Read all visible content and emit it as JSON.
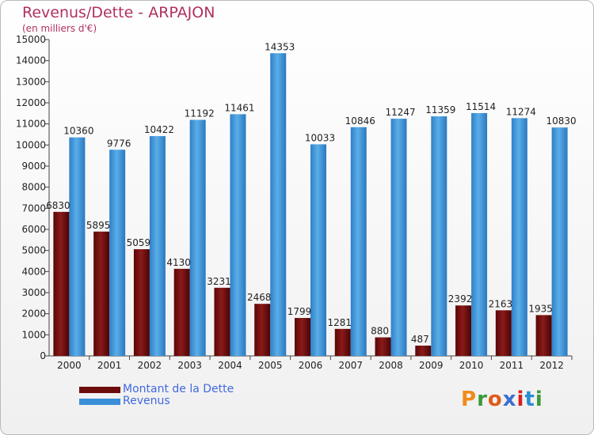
{
  "title": "Revenus/Dette - ARPAJON",
  "subtitle": "(en milliers d'€)",
  "logo": "Proxiti",
  "colors": {
    "dette": "#7a1010",
    "revenus": "#3a8fd8",
    "title": "#b03060",
    "legend_text": "#4169e1"
  },
  "chart_data": {
    "type": "bar",
    "title": "Revenus/Dette - ARPAJON",
    "subtitle": "(en milliers d'€)",
    "categories": [
      "2000",
      "2001",
      "2002",
      "2003",
      "2004",
      "2005",
      "2006",
      "2007",
      "2008",
      "2009",
      "2010",
      "2011",
      "2012"
    ],
    "series": [
      {
        "name": "Montant de la Dette",
        "values": [
          6830,
          5895,
          5059,
          4130,
          3231,
          2468,
          1799,
          1281,
          880,
          487,
          2392,
          2163,
          1935
        ],
        "labels": [
          "6830",
          "5895",
          "5059",
          "4130",
          "3231",
          "2468",
          "1799",
          "1281",
          "880",
          "487",
          "2392",
          "2163",
          "1935"
        ]
      },
      {
        "name": "Revenus",
        "values": [
          10360,
          9776,
          10422,
          11192,
          11461,
          14353,
          10033,
          10846,
          11247,
          11359,
          11514,
          11274,
          10830
        ],
        "labels": [
          "10360",
          "9776",
          "10422",
          "11192",
          "11461",
          "14353",
          "10033",
          "10846",
          "11247",
          "11359",
          "11514",
          "11274",
          "10830"
        ]
      }
    ],
    "ylim": [
      0,
      15000
    ],
    "yticks": [
      0,
      1000,
      2000,
      3000,
      4000,
      5000,
      6000,
      7000,
      8000,
      9000,
      10000,
      11000,
      12000,
      13000,
      14000,
      15000
    ],
    "xlabel": "",
    "ylabel": "",
    "grid": false,
    "legend_position": "bottom-left"
  }
}
